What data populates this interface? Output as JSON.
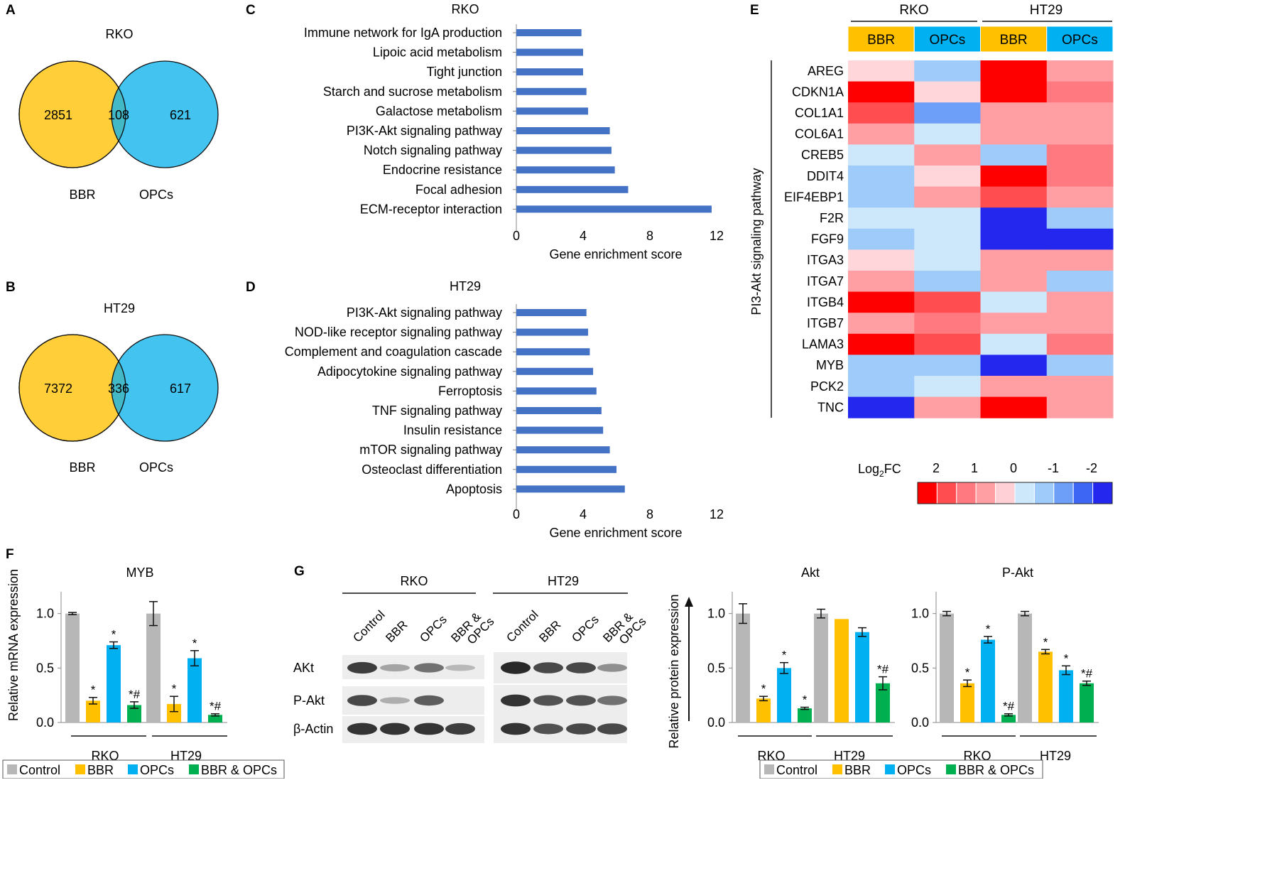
{
  "colors": {
    "control": "#b7b7b7",
    "bbr": "#ffc000",
    "opcs": "#00b0f0",
    "combo": "#00b050",
    "kegg_bar": "#4472c4",
    "venn_bbr": "#ffc000",
    "venn_opcs": "#14b4ec",
    "venn_overlap": "#38aaa4"
  },
  "panel_labels": [
    "A",
    "B",
    "C",
    "D",
    "E",
    "F",
    "G"
  ],
  "venn": [
    {
      "title": "RKO",
      "left_only": "2851",
      "overlap": "108",
      "right_only": "621",
      "left_label": "BBR",
      "right_label": "OPCs"
    },
    {
      "title": "HT29",
      "left_only": "7372",
      "overlap": "336",
      "right_only": "617",
      "left_label": "BBR",
      "right_label": "OPCs"
    }
  ],
  "heatmap": {
    "groups": [
      "RKO",
      "HT29"
    ],
    "columns": [
      "BBR",
      "OPCs",
      "BBR",
      "OPCs"
    ],
    "row_axis_label": "PI3-Akt signaling pathway",
    "genes": [
      "AREG",
      "CDKN1A",
      "COL1A1",
      "COL6A1",
      "CREB5",
      "DDIT4",
      "EIF4EBP1",
      "F2R",
      "FGF9",
      "ITGA3",
      "ITGA7",
      "ITGB4",
      "ITGB7",
      "LAMA3",
      "MYB",
      "PCK2",
      "TNC"
    ],
    "values": [
      [
        0.2,
        -0.8,
        3.0,
        1.0
      ],
      [
        3.0,
        0.2,
        3.0,
        1.4
      ],
      [
        1.8,
        -1.4,
        1.0,
        1.0
      ],
      [
        1.0,
        -0.2,
        1.0,
        1.0
      ],
      [
        -0.2,
        1.0,
        -0.8,
        1.4
      ],
      [
        -0.8,
        0.2,
        3.0,
        1.4
      ],
      [
        -0.8,
        1.0,
        2.0,
        1.0
      ],
      [
        -0.2,
        -0.2,
        -2.6,
        -0.8
      ],
      [
        -0.8,
        -0.2,
        -2.6,
        -2.4
      ],
      [
        0.2,
        -0.2,
        1.0,
        1.0
      ],
      [
        1.0,
        -0.8,
        1.0,
        -0.8
      ],
      [
        3.0,
        2.0,
        -0.2,
        1.0
      ],
      [
        1.0,
        1.4,
        1.0,
        1.0
      ],
      [
        3.0,
        2.0,
        -0.2,
        1.4
      ],
      [
        -0.8,
        -0.8,
        -2.4,
        -0.8
      ],
      [
        -0.8,
        -0.2,
        1.0,
        1.0
      ],
      [
        -2.6,
        1.0,
        3.0,
        1.0
      ]
    ],
    "legend_title": "Log",
    "legend_sub": "2",
    "legend_title_tail": "FC",
    "legend_ticks": [
      "2",
      "1",
      "0",
      "-1",
      "-2"
    ],
    "legend_colors": [
      "#ff0000",
      "#ff4d50",
      "#ff7a80",
      "#ff9ea3",
      "#ffd0d5",
      "#cde8fb",
      "#9fcbfb",
      "#6d9ff9",
      "#3d66f5",
      "#2427ee"
    ]
  },
  "labels": {
    "gene_enrichment_score": "Gene enrichment score",
    "relative_mrna": "Relative mRNA expression",
    "relative_protein": "Relative protein expression",
    "rko": "RKO",
    "ht29": "HT29",
    "star": "*",
    "star_hash": "*#"
  },
  "legend": [
    "Control",
    "BBR",
    "OPCs",
    "BBR & OPCs"
  ],
  "western": {
    "groups": [
      "RKO",
      "HT29"
    ],
    "lanes": [
      "Control",
      "BBR",
      "OPCs",
      "BBR &\nOPCs"
    ],
    "rows": [
      "AKt",
      "P-Akt",
      "β-Actin"
    ]
  },
  "chart_data": [
    {
      "type": "bar",
      "title": "RKO",
      "orientation": "horizontal",
      "xlabel": "Gene enrichment score",
      "xlim": [
        0,
        12
      ],
      "xticks": [
        0,
        4,
        8,
        12
      ],
      "categories": [
        "Immune network for IgA production",
        "Lipoic acid metabolism",
        "Tight junction",
        "Starch and sucrose metabolism",
        "Galactose metabolism",
        "PI3K-Akt signaling pathway",
        "Notch signaling pathway",
        "Endocrine resistance",
        "Focal adhesion",
        "ECM-receptor interaction"
      ],
      "values": [
        3.9,
        4.0,
        4.0,
        4.2,
        4.3,
        5.6,
        5.7,
        5.9,
        6.7,
        11.7
      ]
    },
    {
      "type": "bar",
      "title": "HT29",
      "orientation": "horizontal",
      "xlabel": "Gene enrichment score",
      "xlim": [
        0,
        12
      ],
      "xticks": [
        0,
        4,
        8,
        12
      ],
      "categories": [
        "PI3K-Akt signaling pathway",
        "NOD-like receptor signaling pathway",
        "Complement and coagulation cascade",
        "Adipocytokine signaling pathway",
        "Ferroptosis",
        "TNF signaling pathway",
        "Insulin resistance",
        "mTOR signaling pathway",
        "Osteoclast differentiation",
        "Apoptosis"
      ],
      "values": [
        4.2,
        4.3,
        4.4,
        4.6,
        4.8,
        5.1,
        5.2,
        5.6,
        6.0,
        6.5
      ]
    },
    {
      "type": "bar",
      "title": "MYB",
      "ylabel": "Relative mRNA expression",
      "ylim": [
        0,
        1.2
      ],
      "yticks": [
        0.0,
        0.5,
        1.0
      ],
      "groups": [
        "RKO",
        "HT29"
      ],
      "series": [
        {
          "name": "Control",
          "values": [
            1.0,
            1.0
          ],
          "errors": [
            0.01,
            0.11
          ],
          "marks": [
            "",
            ""
          ]
        },
        {
          "name": "BBR",
          "values": [
            0.2,
            0.17
          ],
          "errors": [
            0.03,
            0.07
          ],
          "marks": [
            "*",
            "*"
          ]
        },
        {
          "name": "OPCs",
          "values": [
            0.71,
            0.59
          ],
          "errors": [
            0.03,
            0.07
          ],
          "marks": [
            "*",
            "*"
          ]
        },
        {
          "name": "BBR & OPCs",
          "values": [
            0.16,
            0.07
          ],
          "errors": [
            0.03,
            0.01
          ],
          "marks": [
            "*#",
            "*#"
          ]
        }
      ]
    },
    {
      "type": "bar",
      "title": "Akt",
      "ylabel": "Relative protein expression",
      "ylim": [
        0,
        1.2
      ],
      "yticks": [
        0.0,
        0.5,
        1.0
      ],
      "groups": [
        "RKO",
        "HT29"
      ],
      "series": [
        {
          "name": "Control",
          "values": [
            1.0,
            1.0
          ],
          "errors": [
            0.09,
            0.04
          ],
          "marks": [
            "",
            ""
          ]
        },
        {
          "name": "BBR",
          "values": [
            0.22,
            0.95
          ],
          "errors": [
            0.02,
            0.0
          ],
          "marks": [
            "*",
            ""
          ]
        },
        {
          "name": "OPCs",
          "values": [
            0.5,
            0.83
          ],
          "errors": [
            0.05,
            0.04
          ],
          "marks": [
            "*",
            ""
          ]
        },
        {
          "name": "BBR & OPCs",
          "values": [
            0.13,
            0.36
          ],
          "errors": [
            0.01,
            0.06
          ],
          "marks": [
            "*",
            "*#"
          ]
        }
      ]
    },
    {
      "type": "bar",
      "title": "P-Akt",
      "ylim": [
        0,
        1.2
      ],
      "yticks": [
        0.0,
        0.5,
        1.0
      ],
      "groups": [
        "RKO",
        "HT29"
      ],
      "series": [
        {
          "name": "Control",
          "values": [
            1.0,
            1.0
          ],
          "errors": [
            0.02,
            0.02
          ],
          "marks": [
            "",
            ""
          ]
        },
        {
          "name": "BBR",
          "values": [
            0.36,
            0.65
          ],
          "errors": [
            0.03,
            0.02
          ],
          "marks": [
            "*",
            "*"
          ]
        },
        {
          "name": "OPCs",
          "values": [
            0.76,
            0.48
          ],
          "errors": [
            0.03,
            0.04
          ],
          "marks": [
            "*",
            "*"
          ]
        },
        {
          "name": "BBR & OPCs",
          "values": [
            0.07,
            0.36
          ],
          "errors": [
            0.01,
            0.02
          ],
          "marks": [
            "*#",
            "*#"
          ]
        }
      ]
    }
  ]
}
